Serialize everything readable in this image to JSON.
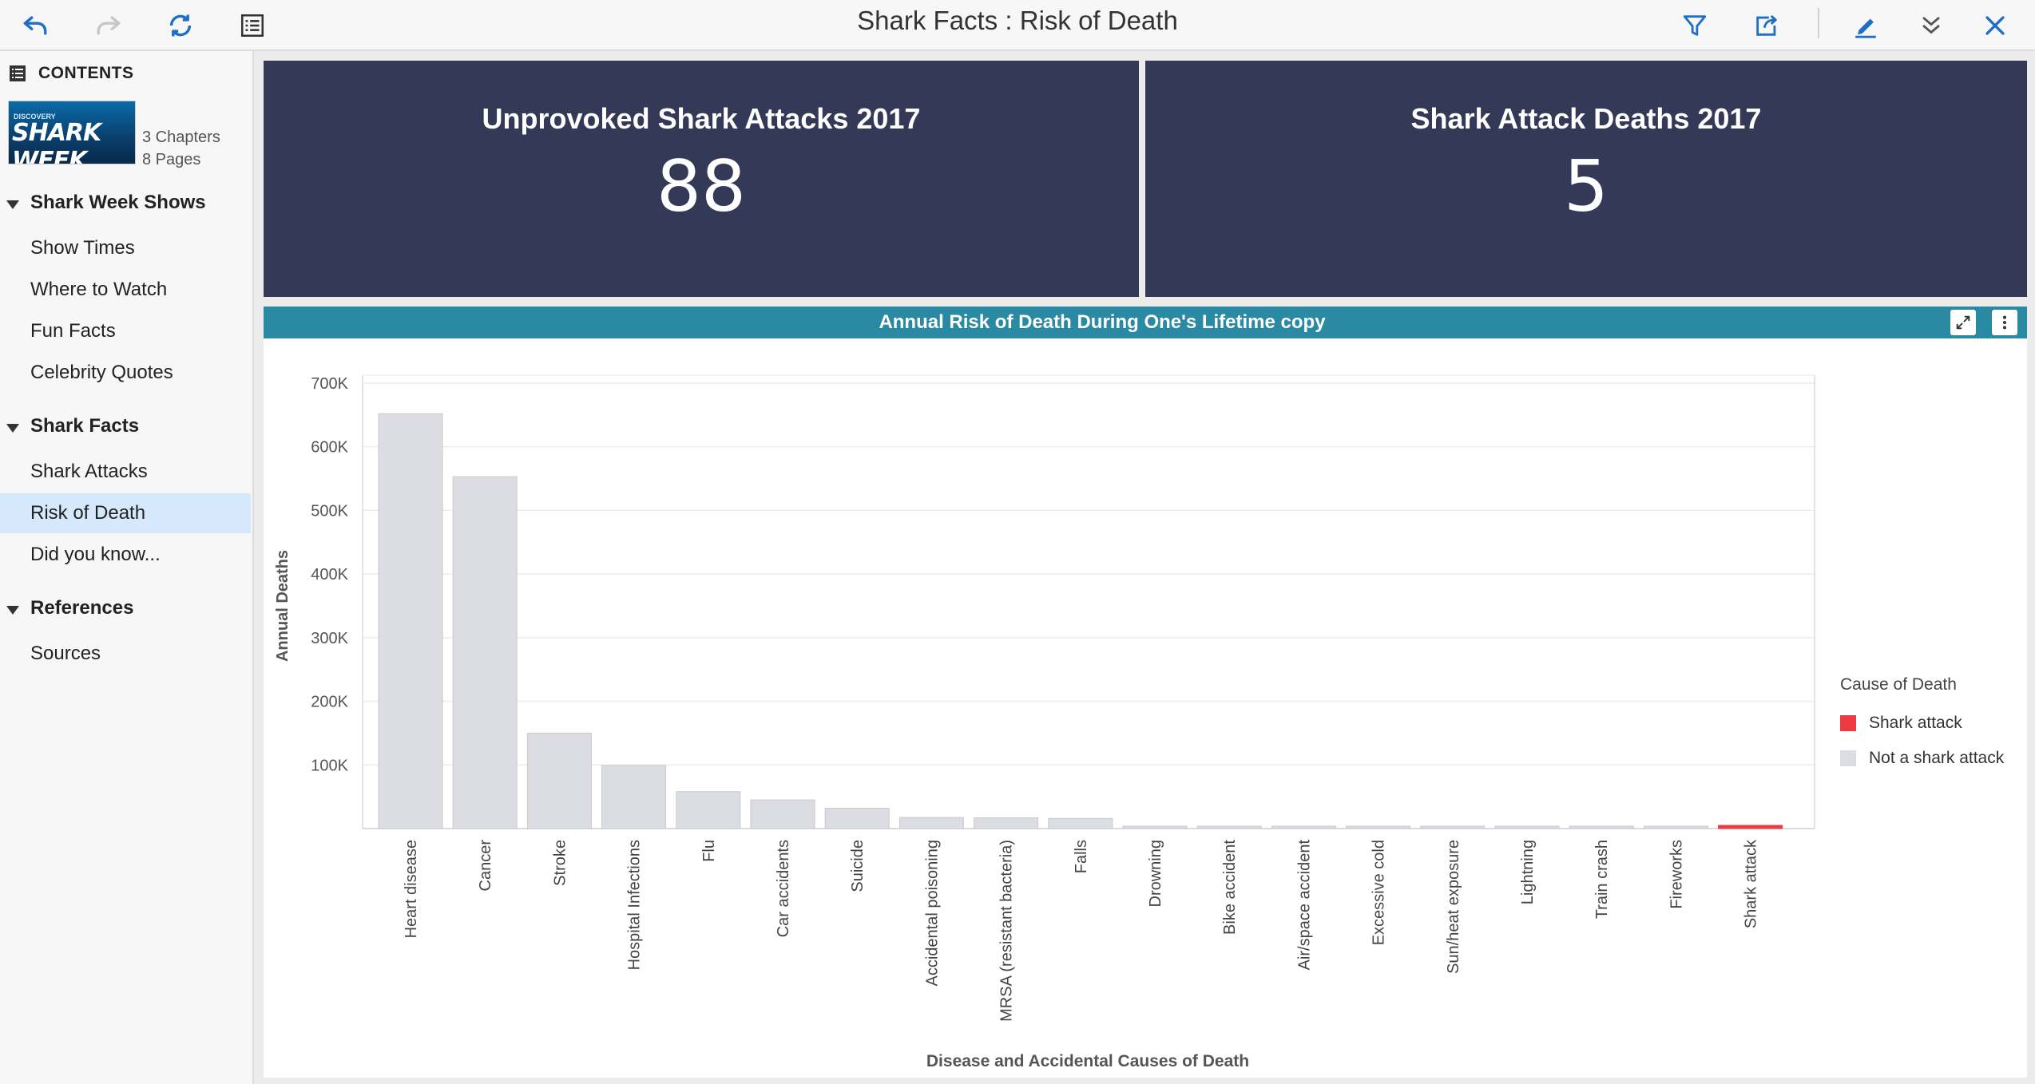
{
  "toolbar": {
    "title": "Shark Facts : Risk of Death"
  },
  "sidebar": {
    "contents_label": "CONTENTS",
    "thumbnail": {
      "brand_text": "SHARK WEEK",
      "small_text": "DISCOVERY"
    },
    "chapters": "3 Chapters",
    "pages": "8 Pages",
    "sections": [
      {
        "label": "Shark Week Shows",
        "items": [
          "Show Times",
          "Where to Watch",
          "Fun Facts",
          "Celebrity Quotes"
        ]
      },
      {
        "label": "Shark Facts",
        "items": [
          "Shark Attacks",
          "Risk of Death",
          "Did you know..."
        ]
      },
      {
        "label": "References",
        "items": [
          "Sources"
        ]
      }
    ],
    "active_item": "Risk of Death"
  },
  "kpis": [
    {
      "title": "Unprovoked Shark Attacks 2017",
      "value": "88"
    },
    {
      "title": "Shark Attack Deaths 2017",
      "value": "5"
    }
  ],
  "colors": {
    "kpi_bg": "#333957",
    "chart_header": "#2a8aa3",
    "bar_default": "#dcdde2",
    "bar_highlight": "#ee3a43",
    "active_nav": "#d6e8fb",
    "icon_blue": "#1f6fc6"
  },
  "chart_data": {
    "type": "bar",
    "title": "Annual Risk of Death During One's Lifetime copy",
    "xlabel": "Disease and Accidental Causes of Death",
    "ylabel": "Annual Deaths",
    "ylim": [
      0,
      700000
    ],
    "yticks": [
      100000,
      200000,
      300000,
      400000,
      500000,
      600000,
      700000
    ],
    "ytick_labels": [
      "100K",
      "200K",
      "300K",
      "400K",
      "500K",
      "600K",
      "700K"
    ],
    "categories": [
      "Heart disease",
      "Cancer",
      "Stroke",
      "Hospital Infections",
      "Flu",
      "Car accidents",
      "Suicide",
      "Accidental poisoning",
      "MRSA (resistant bacteria)",
      "Falls",
      "Drowning",
      "Bike accident",
      "Air/space accident",
      "Excessive cold",
      "Sun/heat exposure",
      "Lightning",
      "Train crash",
      "Fireworks",
      "Shark attack"
    ],
    "values": [
      652000,
      553000,
      150000,
      99000,
      58000,
      45000,
      32000,
      17500,
      17000,
      16000,
      3600,
      900,
      700,
      600,
      400,
      80,
      20,
      11,
      5
    ],
    "highlight_category": "Shark attack",
    "grid": true,
    "legend": {
      "title": "Cause of Death",
      "position": "right",
      "entries": [
        {
          "label": "Shark attack",
          "color": "#ee3a43"
        },
        {
          "label": "Not a shark attack",
          "color": "#dcdde2"
        }
      ]
    }
  }
}
